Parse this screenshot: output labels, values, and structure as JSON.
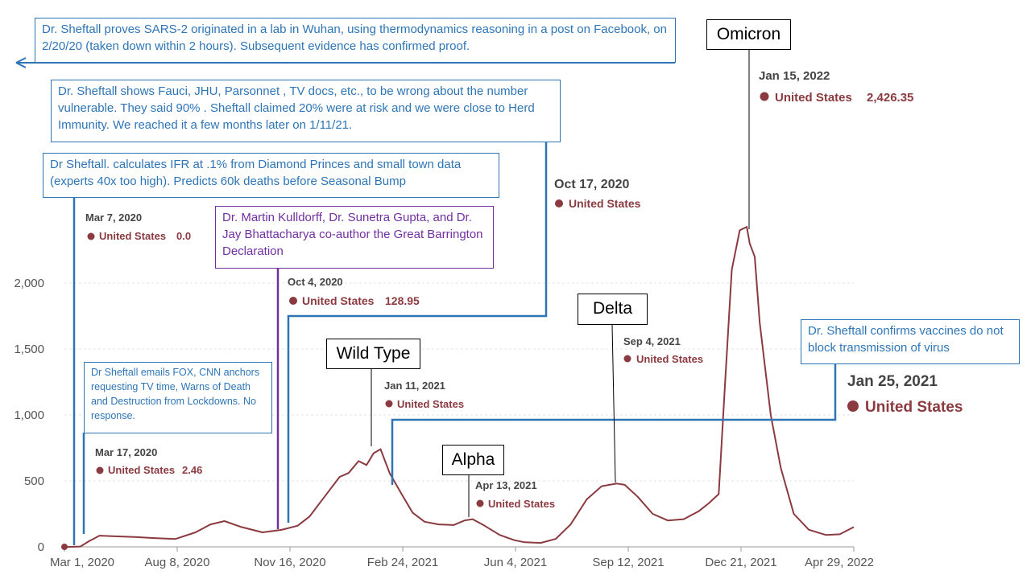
{
  "colors": {
    "series": "#8b3a3f",
    "callout": "#2e75b6",
    "purple": "#7030a0",
    "axis": "#555555"
  },
  "chart_data": {
    "type": "line",
    "xlabel": "",
    "ylabel": "",
    "ylim": [
      0,
      2500
    ],
    "y_ticks": [
      0,
      500,
      1000,
      1500,
      2000
    ],
    "y_tick_labels": [
      "0",
      "500",
      "1,000",
      "1,500",
      "2,000"
    ],
    "x_tick_labels": [
      "Mar 1, 2020",
      "Aug 8, 2020",
      "Nov 16, 2020",
      "Feb 24, 2021",
      "Jun 4, 2021",
      "Sep 12, 2021",
      "Dec 21, 2021",
      "Apr 29, 2022"
    ],
    "grid": "horizontal",
    "series": [
      {
        "name": "United States",
        "x": [
          "2020-03-01",
          "2020-03-07",
          "2020-03-17",
          "2020-03-25",
          "2020-04-05",
          "2020-04-20",
          "2020-05-10",
          "2020-06-01",
          "2020-06-20",
          "2020-07-10",
          "2020-07-25",
          "2020-08-08",
          "2020-08-25",
          "2020-09-15",
          "2020-10-04",
          "2020-10-20",
          "2020-11-01",
          "2020-11-16",
          "2020-12-01",
          "2020-12-10",
          "2020-12-20",
          "2020-12-28",
          "2021-01-04",
          "2021-01-11",
          "2021-01-20",
          "2021-02-01",
          "2021-02-12",
          "2021-02-24",
          "2021-03-10",
          "2021-03-25",
          "2021-04-05",
          "2021-04-13",
          "2021-04-25",
          "2021-05-10",
          "2021-05-25",
          "2021-06-04",
          "2021-06-20",
          "2021-07-05",
          "2021-07-20",
          "2021-08-05",
          "2021-08-20",
          "2021-09-04",
          "2021-09-12",
          "2021-09-25",
          "2021-10-10",
          "2021-10-25",
          "2021-11-10",
          "2021-11-25",
          "2021-12-05",
          "2021-12-15",
          "2021-12-21",
          "2021-12-28",
          "2022-01-05",
          "2022-01-12",
          "2022-01-15",
          "2022-01-20",
          "2022-01-25",
          "2022-02-05",
          "2022-02-15",
          "2022-02-28",
          "2022-03-15",
          "2022-04-01",
          "2022-04-15",
          "2022-04-29"
        ],
        "y": [
          0,
          0.0,
          2.46,
          40,
          85,
          80,
          75,
          65,
          60,
          110,
          170,
          195,
          150,
          110,
          128.95,
          160,
          230,
          380,
          530,
          560,
          650,
          620,
          710,
          740,
          560,
          400,
          260,
          190,
          170,
          165,
          200,
          210,
          160,
          90,
          50,
          35,
          30,
          60,
          170,
          360,
          460,
          480,
          470,
          380,
          250,
          200,
          210,
          270,
          330,
          400,
          1200,
          2100,
          2400,
          2426.35,
          2300,
          2200,
          1700,
          1000,
          600,
          250,
          130,
          90,
          95,
          150
        ]
      }
    ],
    "tooltips": [
      {
        "date": "Mar 7, 2020",
        "series": "United States",
        "value": "0.0"
      },
      {
        "date": "Mar 17, 2020",
        "series": "United States",
        "value": "2.46"
      },
      {
        "date": "Oct 4, 2020",
        "series": "United States",
        "value": "128.95"
      },
      {
        "date": "Oct 17, 2020",
        "series": "United States",
        "value": ""
      },
      {
        "date": "Jan 11, 2021",
        "series": "United States",
        "value": ""
      },
      {
        "date": "Apr 13, 2021",
        "series": "United States",
        "value": ""
      },
      {
        "date": "Sep 4, 2021",
        "series": "United States",
        "value": ""
      },
      {
        "date": "Jan 15, 2022",
        "series": "United States",
        "value": "2,426.35"
      },
      {
        "date": "Jan 25, 2021",
        "series": "United States",
        "value": ""
      }
    ],
    "variants": [
      "Omicron",
      "Wild Type",
      "Delta",
      "Alpha"
    ]
  },
  "annotations": {
    "wuhan": "Dr. Sheftall proves SARS-2 originated in a lab in Wuhan,  using thermodynamics reasoning in a post on Facebook, on 2/20/20 (taken down within 2 hours). Subsequent evidence has confirmed proof.",
    "herd": "Dr. Sheftall shows  Fauci, JHU, Parsonnet , TV docs, etc.,  to be wrong about the number  vulnerable. They said  90% . Sheftall claimed 20% were at risk and we were close to Herd  Immunity. We reached it a few months later on 1/11/21.",
    "ifr": "Dr Sheftall. calculates IFR at .1%   from Diamond Princes and small town data (experts 40x too high). Predicts 60k deaths before  Seasonal Bump",
    "gbd": "Dr. Martin Kulldorff, Dr. Sunetra Gupta, and Dr. Jay Bhattacharya co-author the Great Barrington Declaration",
    "emails": "Dr Sheftall emails  FOX, CNN anchors requesting TV time, Warns of Death and Destruction from Lockdowns. No response.",
    "vaccines": "Dr. Sheftall confirms vaccines do not block transmission of virus"
  }
}
